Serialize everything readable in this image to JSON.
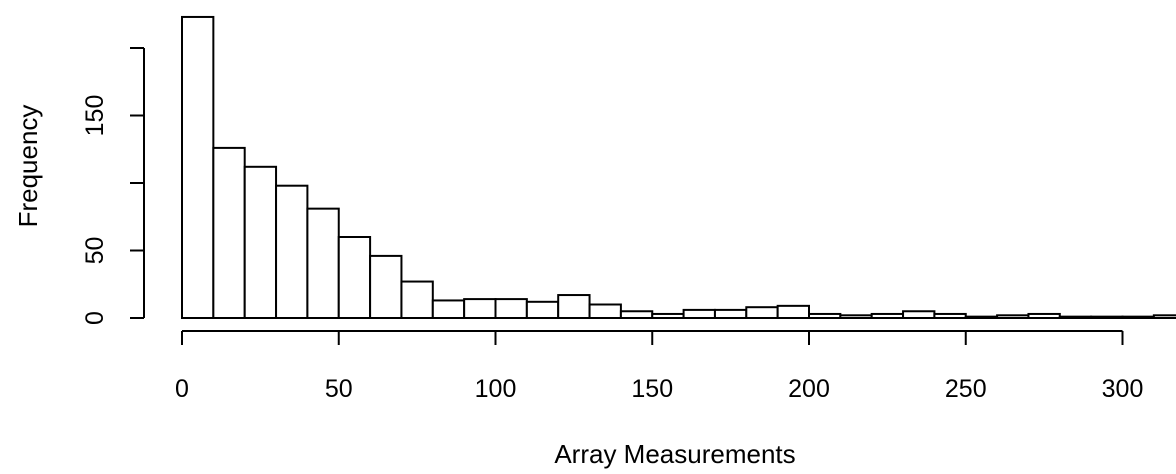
{
  "chart_data": {
    "type": "bar",
    "bin_width": 10,
    "bins_start": [
      0,
      10,
      20,
      30,
      40,
      50,
      60,
      70,
      80,
      90,
      100,
      110,
      120,
      130,
      140,
      150,
      160,
      170,
      180,
      190,
      200,
      210,
      220,
      230,
      240,
      250,
      260,
      270,
      280,
      290,
      300,
      310
    ],
    "values": [
      223,
      126,
      112,
      98,
      81,
      60,
      46,
      27,
      13,
      14,
      14,
      12,
      17,
      10,
      5,
      3,
      6,
      6,
      8,
      9,
      3,
      2,
      3,
      5,
      3,
      1,
      2,
      3,
      1,
      1,
      1,
      2
    ],
    "xlabel": "Array Measurements",
    "ylabel": "Frequency",
    "xlim": [
      0,
      318
    ],
    "ylim": [
      0,
      223
    ],
    "x_ticks": [
      0,
      50,
      100,
      150,
      200,
      250,
      300
    ],
    "x_tick_labels": [
      "0",
      "50",
      "100",
      "150",
      "200",
      "250",
      "300"
    ],
    "y_ticks": [
      0,
      50,
      100,
      150,
      200
    ],
    "y_tick_labels": [
      "0",
      "50",
      "",
      "150",
      ""
    ],
    "grid": false
  }
}
